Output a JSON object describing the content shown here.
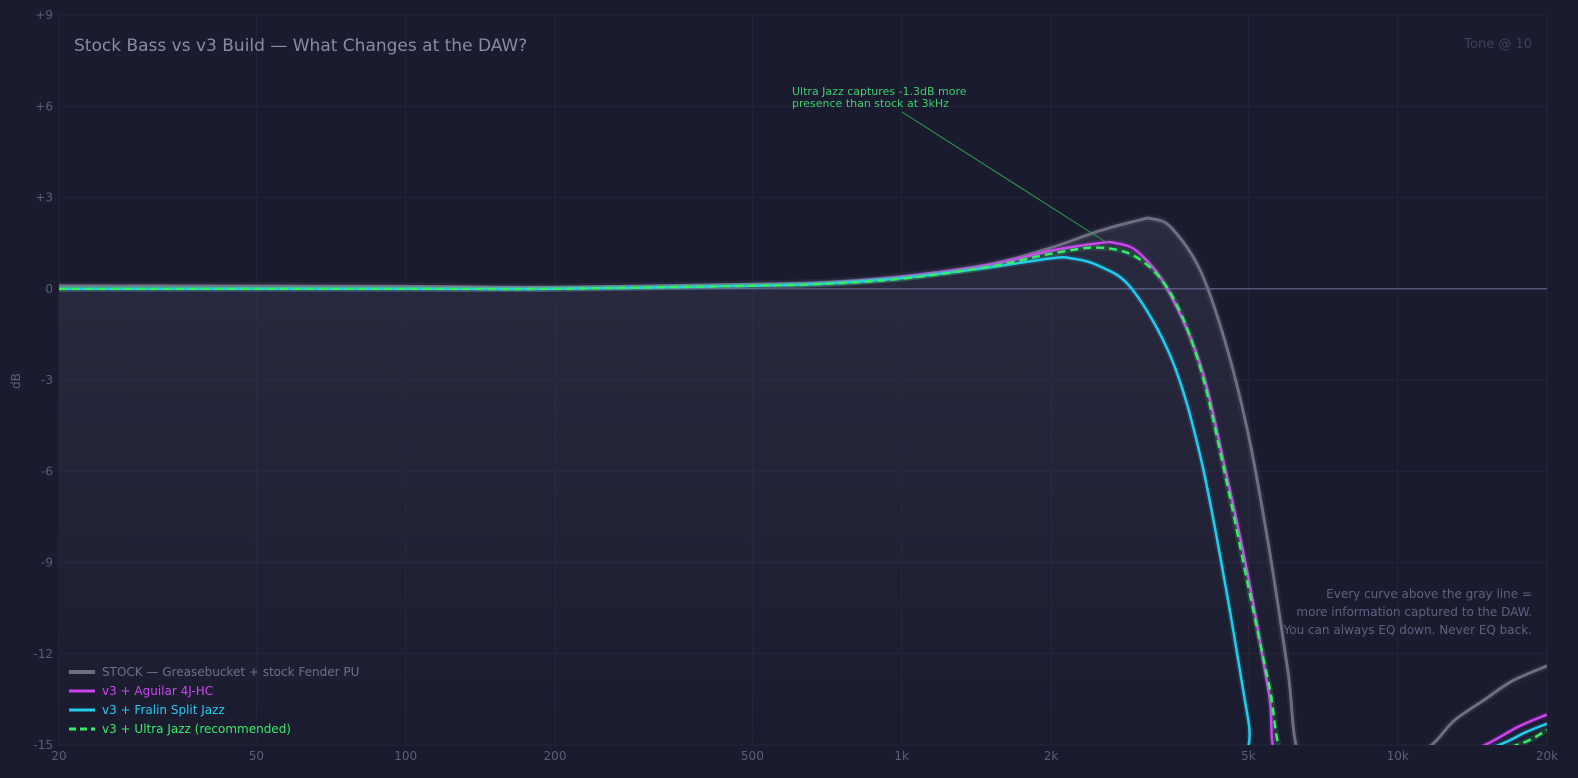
{
  "chart_data": {
    "type": "line",
    "title": "Stock Bass vs v3 Build — What Changes at the DAW?",
    "corner_label": "Tone @ 10",
    "xlabel": "",
    "ylabel": "dB",
    "xscale": "log",
    "xlim": [
      20,
      20000
    ],
    "ylim": [
      -15,
      9
    ],
    "grid": true,
    "legend_position": "bottom-left",
    "x_ticks": [
      {
        "value": 20,
        "label": "20"
      },
      {
        "value": 50,
        "label": "50"
      },
      {
        "value": 100,
        "label": "100"
      },
      {
        "value": 200,
        "label": "200"
      },
      {
        "value": 500,
        "label": "500"
      },
      {
        "value": 1000,
        "label": "1k"
      },
      {
        "value": 2000,
        "label": "2k"
      },
      {
        "value": 5000,
        "label": "5k"
      },
      {
        "value": 10000,
        "label": "10k"
      },
      {
        "value": 20000,
        "label": "20k"
      }
    ],
    "y_ticks": [
      {
        "value": 9,
        "label": "+9"
      },
      {
        "value": 6,
        "label": "+6"
      },
      {
        "value": 3,
        "label": "+3"
      },
      {
        "value": 0,
        "label": "0"
      },
      {
        "value": -3,
        "label": "-3"
      },
      {
        "value": -6,
        "label": "-6"
      },
      {
        "value": -9,
        "label": "-9"
      },
      {
        "value": -12,
        "label": "-12"
      },
      {
        "value": -15,
        "label": "-15"
      }
    ],
    "series": [
      {
        "name": "STOCK — Greasebucket + stock Fender PU",
        "color": "#6e6e82",
        "dashed": false,
        "points": [
          [
            20,
            0.1
          ],
          [
            100,
            0.08
          ],
          [
            200,
            0.05
          ],
          [
            500,
            0.15
          ],
          [
            700,
            0.2
          ],
          [
            1000,
            0.4
          ],
          [
            1500,
            0.8
          ],
          [
            2000,
            1.35
          ],
          [
            2500,
            1.9
          ],
          [
            3000,
            2.25
          ],
          [
            3200,
            2.3
          ],
          [
            3500,
            2.0
          ],
          [
            4000,
            0.6
          ],
          [
            4500,
            -1.8
          ],
          [
            5000,
            -4.8
          ],
          [
            5500,
            -8.5
          ],
          [
            6000,
            -12.5
          ],
          [
            6400,
            -15.5
          ],
          [
            8000,
            -25
          ],
          [
            10000,
            -19
          ],
          [
            11700,
            -15
          ],
          [
            13000,
            -14.2
          ],
          [
            15000,
            -13.5
          ],
          [
            17000,
            -12.9
          ],
          [
            20000,
            -12.4
          ]
        ]
      },
      {
        "name": "v3 + Aguilar 4J-HC",
        "color": "#cc44ee",
        "dashed": false,
        "points": [
          [
            20,
            0
          ],
          [
            100,
            0
          ],
          [
            200,
            0
          ],
          [
            500,
            0.1
          ],
          [
            700,
            0.18
          ],
          [
            1000,
            0.38
          ],
          [
            1500,
            0.78
          ],
          [
            2000,
            1.25
          ],
          [
            2500,
            1.5
          ],
          [
            2700,
            1.5
          ],
          [
            3000,
            1.2
          ],
          [
            3430,
            0
          ],
          [
            4000,
            -2.5
          ],
          [
            4500,
            -6
          ],
          [
            5000,
            -9.5
          ],
          [
            5500,
            -13.3
          ],
          [
            5800,
            -15.5
          ],
          [
            8000,
            -30
          ],
          [
            12000,
            -20
          ],
          [
            15000,
            -15
          ],
          [
            17500,
            -14.4
          ],
          [
            20000,
            -14.0
          ]
        ]
      },
      {
        "name": "v3 + Fralin Split Jazz",
        "color": "#22ccee",
        "dashed": false,
        "points": [
          [
            20,
            0
          ],
          [
            100,
            0
          ],
          [
            200,
            0
          ],
          [
            500,
            0.1
          ],
          [
            700,
            0.17
          ],
          [
            1000,
            0.35
          ],
          [
            1500,
            0.7
          ],
          [
            2000,
            1.0
          ],
          [
            2200,
            1.0
          ],
          [
            2500,
            0.75
          ],
          [
            2910,
            0
          ],
          [
            3500,
            -2.3
          ],
          [
            4000,
            -5.5
          ],
          [
            4500,
            -9.8
          ],
          [
            5000,
            -14.2
          ],
          [
            5200,
            -15.5
          ],
          [
            8000,
            -30
          ],
          [
            12000,
            -20
          ],
          [
            16000,
            -15
          ],
          [
            18000,
            -14.6
          ],
          [
            20000,
            -14.3
          ]
        ]
      },
      {
        "name": "v3 + Ultra Jazz (recommended)",
        "color": "#33ee66",
        "dashed": true,
        "points": [
          [
            20,
            0
          ],
          [
            100,
            0
          ],
          [
            200,
            0
          ],
          [
            500,
            0.1
          ],
          [
            700,
            0.16
          ],
          [
            1000,
            0.33
          ],
          [
            1500,
            0.72
          ],
          [
            2000,
            1.15
          ],
          [
            2500,
            1.35
          ],
          [
            3000,
            1.0
          ],
          [
            3500,
            -0.2
          ],
          [
            4000,
            -2.6
          ],
          [
            4500,
            -6.2
          ],
          [
            5000,
            -9.8
          ],
          [
            5500,
            -13.0
          ],
          [
            6000,
            -15.8
          ],
          [
            8000,
            -30
          ],
          [
            12000,
            -21
          ],
          [
            17400,
            -15
          ],
          [
            20000,
            -14.5
          ]
        ]
      }
    ],
    "annotation": {
      "lines": [
        "Ultra Jazz captures -1.3dB more",
        "presence than stock at 3kHz"
      ],
      "target": [
        2600,
        1.5
      ],
      "color": "#3ecf6e"
    },
    "footnote": [
      "Every curve above the gray line =",
      "more information captured to the DAW.",
      "You can always EQ down. Never EQ back."
    ],
    "reference_line": 0
  }
}
